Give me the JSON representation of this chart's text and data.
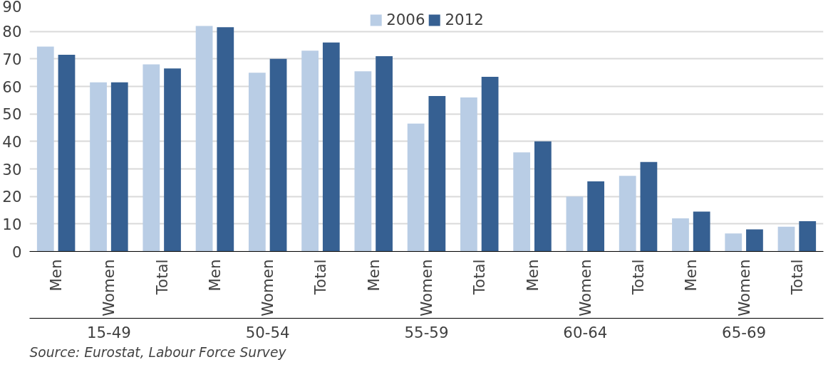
{
  "chart_data": {
    "type": "bar",
    "categories": [
      "Men",
      "Women",
      "Total",
      "Men",
      "Women",
      "Total",
      "Men",
      "Women",
      "Total",
      "Men",
      "Women",
      "Total",
      "Men",
      "Women",
      "Total"
    ],
    "series": [
      {
        "name": "2006",
        "color": "#b9cde5",
        "values": [
          74.5,
          61.5,
          68,
          82,
          65,
          73,
          65.5,
          46.5,
          56,
          36,
          20,
          27.5,
          12,
          6.5,
          9
        ]
      },
      {
        "name": "2012",
        "color": "#366092",
        "values": [
          71.5,
          61.5,
          66.5,
          81.5,
          70,
          76,
          71,
          56.5,
          63.5,
          40,
          25.5,
          32.5,
          14.5,
          8,
          11
        ]
      }
    ],
    "ylim": [
      0,
      90
    ],
    "yticks": [
      0,
      10,
      20,
      30,
      40,
      50,
      60,
      70,
      80,
      90
    ],
    "grid": "y",
    "legend": "top",
    "annotations": [
      "15-49",
      "50-54",
      "55-59",
      "60-64",
      "65-69",
      "Source: Eurostat, Labour Force Survey"
    ]
  }
}
